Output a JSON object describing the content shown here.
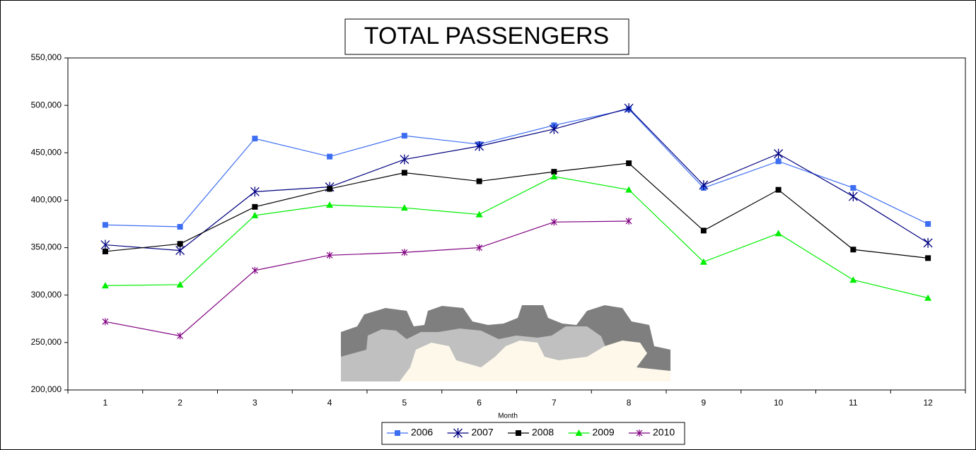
{
  "chart_data": {
    "type": "line",
    "title": "TOTAL PASSENGERS",
    "x_label": "Month",
    "categories": [
      "1",
      "2",
      "3",
      "4",
      "5",
      "6",
      "7",
      "8",
      "9",
      "10",
      "11",
      "12"
    ],
    "ylim": [
      200000,
      550000
    ],
    "yticks": [
      {
        "value": 200000,
        "label": "200,000"
      },
      {
        "value": 250000,
        "label": "250,000"
      },
      {
        "value": 300000,
        "label": "300,000"
      },
      {
        "value": 350000,
        "label": "350,000"
      },
      {
        "value": 400000,
        "label": "400,000"
      },
      {
        "value": 450000,
        "label": "450,000"
      },
      {
        "value": 500000,
        "label": "500,000"
      },
      {
        "value": 550000,
        "label": "550,000"
      }
    ],
    "grid": false,
    "legend": "bottom",
    "series": [
      {
        "name": "2006",
        "color": "#3d6ef2",
        "marker": "square",
        "values": [
          374000,
          372000,
          465000,
          446000,
          468000,
          459000,
          479000,
          496000,
          413000,
          441000,
          413000,
          375000
        ]
      },
      {
        "name": "2007",
        "color": "#000080",
        "marker": "xstar",
        "values": [
          353000,
          347000,
          409000,
          414000,
          443000,
          457000,
          475000,
          497000,
          416000,
          449000,
          404000,
          355000
        ]
      },
      {
        "name": "2008",
        "color": "#000000",
        "marker": "square",
        "values": [
          346000,
          354000,
          393000,
          412000,
          429000,
          420000,
          430000,
          439000,
          368000,
          411000,
          348000,
          339000
        ]
      },
      {
        "name": "2009",
        "color": "#00ee00",
        "marker": "triangle",
        "values": [
          310000,
          311000,
          384000,
          395000,
          392000,
          385000,
          425000,
          411000,
          335000,
          365000,
          316000,
          297000
        ]
      },
      {
        "name": "2010",
        "color": "#800080",
        "marker": "asterisk",
        "values": [
          272000,
          257000,
          326000,
          342000,
          345000,
          350000,
          377000,
          378000,
          null,
          null,
          null,
          null
        ]
      }
    ]
  }
}
